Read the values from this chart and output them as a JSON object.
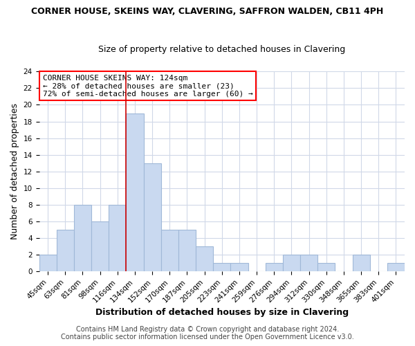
{
  "title": "CORNER HOUSE, SKEINS WAY, CLAVERING, SAFFRON WALDEN, CB11 4PH",
  "subtitle": "Size of property relative to detached houses in Clavering",
  "xlabel": "Distribution of detached houses by size in Clavering",
  "ylabel": "Number of detached properties",
  "bin_labels": [
    "45sqm",
    "63sqm",
    "81sqm",
    "98sqm",
    "116sqm",
    "134sqm",
    "152sqm",
    "170sqm",
    "187sqm",
    "205sqm",
    "223sqm",
    "241sqm",
    "259sqm",
    "276sqm",
    "294sqm",
    "312sqm",
    "330sqm",
    "348sqm",
    "365sqm",
    "383sqm",
    "401sqm"
  ],
  "bar_heights": [
    2,
    5,
    8,
    6,
    8,
    19,
    13,
    5,
    5,
    3,
    1,
    1,
    0,
    1,
    2,
    2,
    1,
    0,
    2,
    0,
    1
  ],
  "bar_color": "#c9d9f0",
  "bar_edgecolor": "#a0b8d8",
  "bar_linewidth": 0.8,
  "vline_x_index": 5,
  "vline_color": "#cc0000",
  "ylim": [
    0,
    24
  ],
  "yticks": [
    0,
    2,
    4,
    6,
    8,
    10,
    12,
    14,
    16,
    18,
    20,
    22,
    24
  ],
  "annotation_text_line1": "CORNER HOUSE SKEINS WAY: 124sqm",
  "annotation_text_line2": "← 28% of detached houses are smaller (23)",
  "annotation_text_line3": "72% of semi-detached houses are larger (60) →",
  "footer1": "Contains HM Land Registry data © Crown copyright and database right 2024.",
  "footer2": "Contains public sector information licensed under the Open Government Licence v3.0.",
  "title_fontsize": 9,
  "subtitle_fontsize": 9,
  "axis_label_fontsize": 9,
  "tick_fontsize": 7.5,
  "annotation_fontsize": 8,
  "footer_fontsize": 7,
  "background_color": "#ffffff",
  "grid_color": "#d0d8e8"
}
